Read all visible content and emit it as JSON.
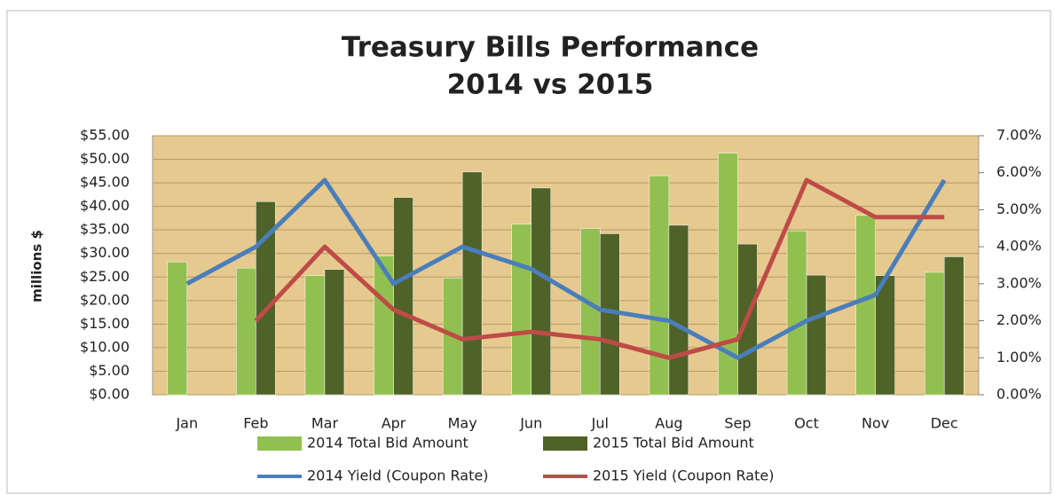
{
  "chart_data": {
    "type": "bar",
    "title": "Treasury Bills Performance",
    "subtitle": "2014 vs 2015",
    "ylabel": "millions $",
    "categories": [
      "Jan",
      "Feb",
      "Mar",
      "Apr",
      "May",
      "Jun",
      "Jul",
      "Aug",
      "Sep",
      "Oct",
      "Nov",
      "Dec"
    ],
    "series": [
      {
        "name": "2014 Total Bid Amount",
        "type": "bar",
        "color": "#92c050",
        "values": [
          28.2,
          26.9,
          25.3,
          29.5,
          24.8,
          36.2,
          35.3,
          46.5,
          51.3,
          34.8,
          38.1,
          26
        ]
      },
      {
        "name": "2015 Total Bid Amount",
        "type": "bar",
        "color": "#4f6228",
        "values": [
          null,
          41,
          26.6,
          41.9,
          47.3,
          43.9,
          34.2,
          36,
          32,
          25.4,
          25.3,
          29.3
        ]
      },
      {
        "name": "2014 Yield (Coupon Rate)",
        "type": "line",
        "axis": "y2",
        "color": "#4a7ebb",
        "values": [
          3.0,
          4.0,
          5.8,
          3.0,
          4.0,
          3.4,
          2.3,
          2.0,
          1.0,
          2.0,
          2.7,
          5.8
        ]
      },
      {
        "name": "2015 Yield (Coupon Rate)",
        "type": "line",
        "axis": "y2",
        "color": "#be4b48",
        "values": [
          null,
          2.0,
          4.0,
          2.3,
          1.5,
          1.7,
          1.5,
          1.0,
          1.5,
          5.8,
          4.8,
          4.8
        ]
      }
    ],
    "ylim": [
      0,
      55
    ],
    "yticks": [
      {
        "value": 0,
        "label": "$0.00"
      },
      {
        "value": 5,
        "label": "$5.00"
      },
      {
        "value": 10,
        "label": "$10.00"
      },
      {
        "value": 15,
        "label": "$15.00"
      },
      {
        "value": 20,
        "label": "$20.00"
      },
      {
        "value": 25,
        "label": "$25.00"
      },
      {
        "value": 30,
        "label": "$30.00"
      },
      {
        "value": 35,
        "label": "$35.00"
      },
      {
        "value": 40,
        "label": "$40.00"
      },
      {
        "value": 45,
        "label": "$45.00"
      },
      {
        "value": 50,
        "label": "$50.00"
      },
      {
        "value": 55,
        "label": "$55.00"
      }
    ],
    "y2lim": [
      0,
      7
    ],
    "y2ticks": [
      {
        "value": 0,
        "label": "0.00%"
      },
      {
        "value": 1,
        "label": "1.00%"
      },
      {
        "value": 2,
        "label": "2.00%"
      },
      {
        "value": 3,
        "label": "3.00%"
      },
      {
        "value": 4,
        "label": "4.00%"
      },
      {
        "value": 5,
        "label": "5.00%"
      },
      {
        "value": 6,
        "label": "6.00%"
      },
      {
        "value": 7,
        "label": "7.00%"
      }
    ],
    "grid": true,
    "legend": "bottom"
  }
}
